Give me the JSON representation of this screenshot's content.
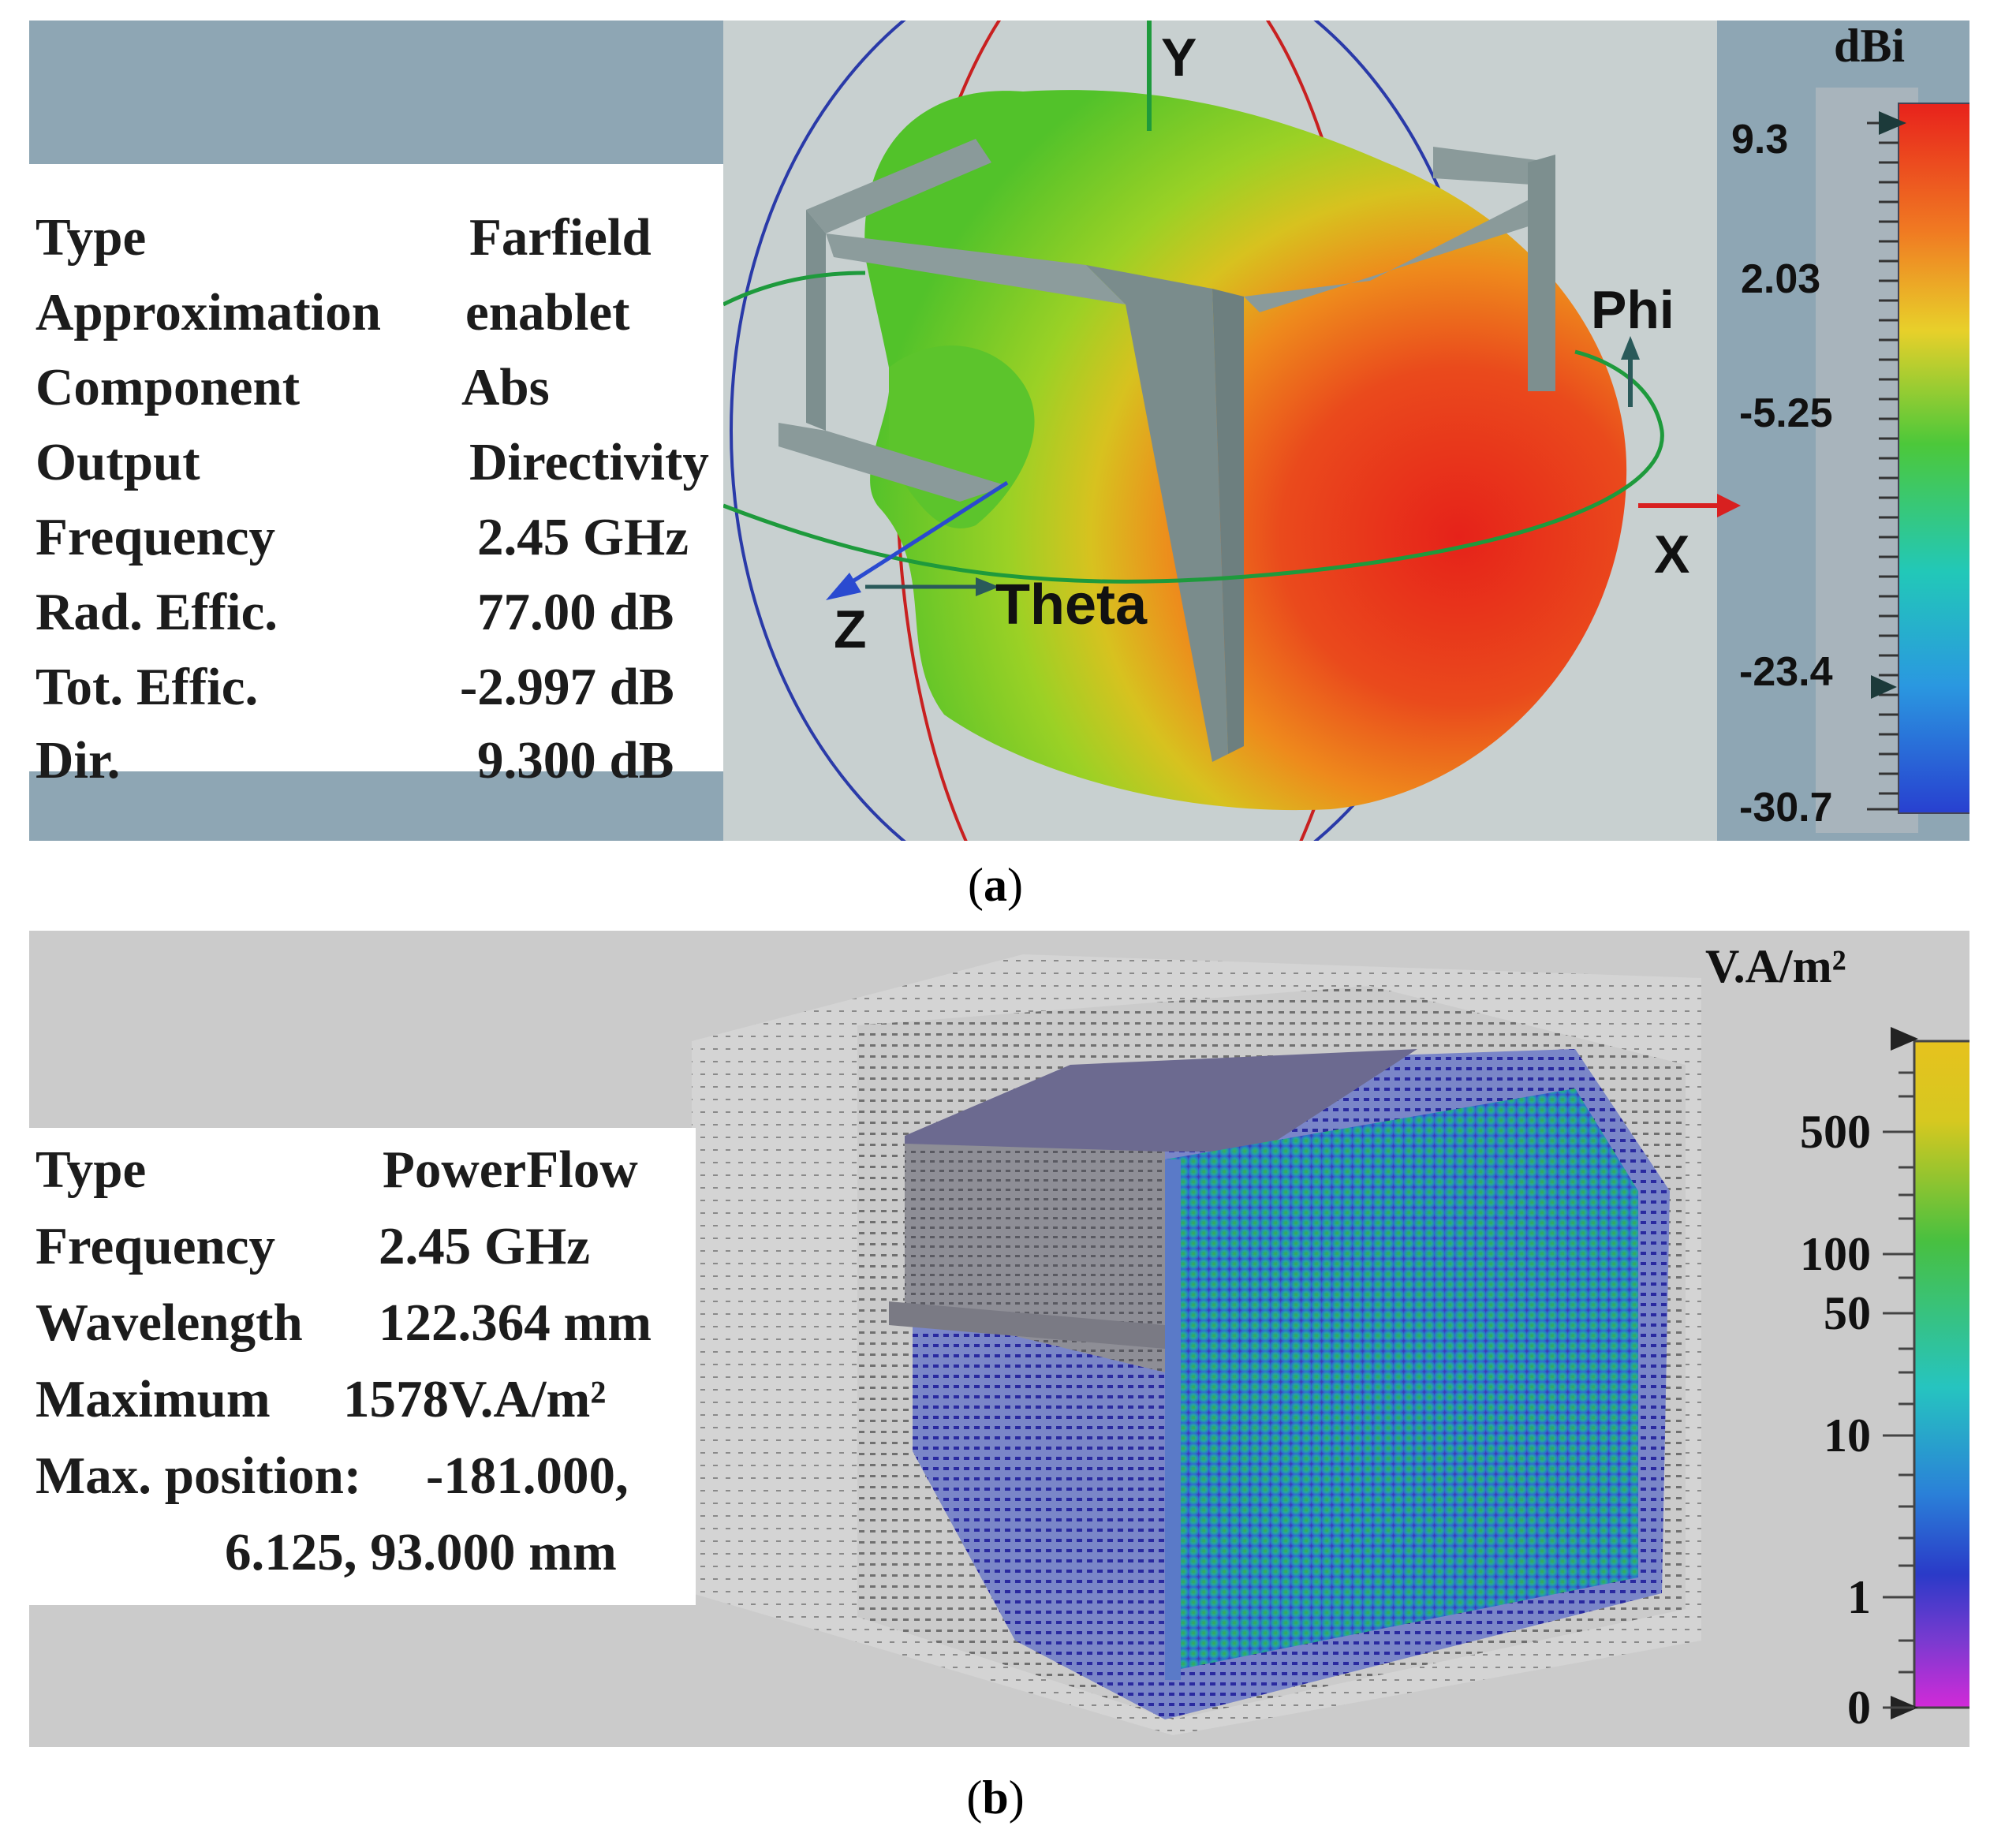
{
  "panel_a": {
    "caption_open": "(",
    "caption_letter": "a",
    "caption_close": ")",
    "info": [
      {
        "key": "Type",
        "value": "Farfield"
      },
      {
        "key": "Approximation",
        "value": "enablet"
      },
      {
        "key": "Component",
        "value": "Abs"
      },
      {
        "key": "Output",
        "value": "Directivity"
      },
      {
        "key": "Frequency",
        "value": "2.45 GHz"
      },
      {
        "key": "Rad. Effic.",
        "value": "77.00 dB"
      },
      {
        "key": "Tot. Effic.",
        "value": "-2.997 dB"
      },
      {
        "key": "Dir.",
        "value": "9.300 dB"
      }
    ],
    "axes": {
      "y": "Y",
      "x": "X",
      "z": "Z",
      "phi": "Phi",
      "theta": "Theta"
    },
    "scale": {
      "unit": "dBi",
      "ticks": [
        "9.3",
        "2.03",
        "-5.25",
        "-23.4",
        "-30.7"
      ]
    }
  },
  "panel_b": {
    "caption_open": "(",
    "caption_letter": "b",
    "caption_close": ")",
    "info": [
      {
        "key": "Type",
        "value": "PowerFlow"
      },
      {
        "key": "Frequency",
        "value": "2.45 GHz"
      },
      {
        "key": "Wavelength",
        "value": "122.364 mm"
      },
      {
        "key": "Maximum",
        "value": "1578V.A/m²"
      },
      {
        "key": "Max. position:",
        "value": "-181.000,"
      },
      {
        "key": "",
        "value": "6.125, 93.000 mm"
      }
    ],
    "scale": {
      "unit": "V.A/m²",
      "ticks": [
        "500",
        "100",
        "50",
        "10",
        "1",
        "0"
      ]
    }
  },
  "colors": {
    "panel_a_bg": "#8ea6b4",
    "panel_b_bg": "#cbcbcb",
    "antenna_gray": "#7d8f8f",
    "pattern_red": "#e4261a",
    "pattern_green": "#5fc52a"
  }
}
